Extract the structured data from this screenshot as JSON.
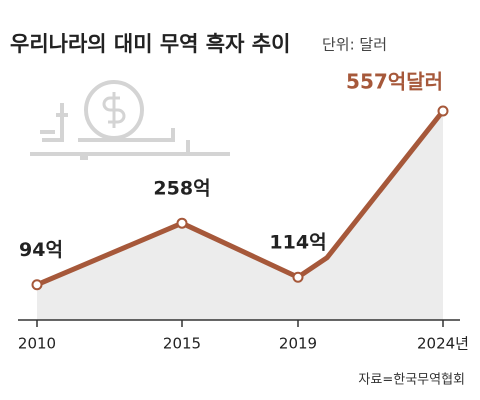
{
  "chart_data": {
    "type": "line",
    "title": "우리나라의 대미 무역 흑자 추이",
    "subtitle": "단위: 달러",
    "source": "자료=한국무역협회",
    "x": [
      2010,
      2015,
      2019,
      2020,
      2024
    ],
    "series": [
      {
        "name": "대미 무역 흑자",
        "color": "#a6583a",
        "values": [
          94,
          258,
          114,
          166,
          557
        ],
        "value_labels": [
          "94억",
          "258억",
          "114억",
          null,
          "557억달러"
        ]
      }
    ],
    "xlim": [
      2010,
      2024
    ],
    "xticks": [
      2010,
      2015,
      2019,
      {
        "value": 2024,
        "label": "2024년"
      }
    ],
    "area_color": "#ececec"
  }
}
